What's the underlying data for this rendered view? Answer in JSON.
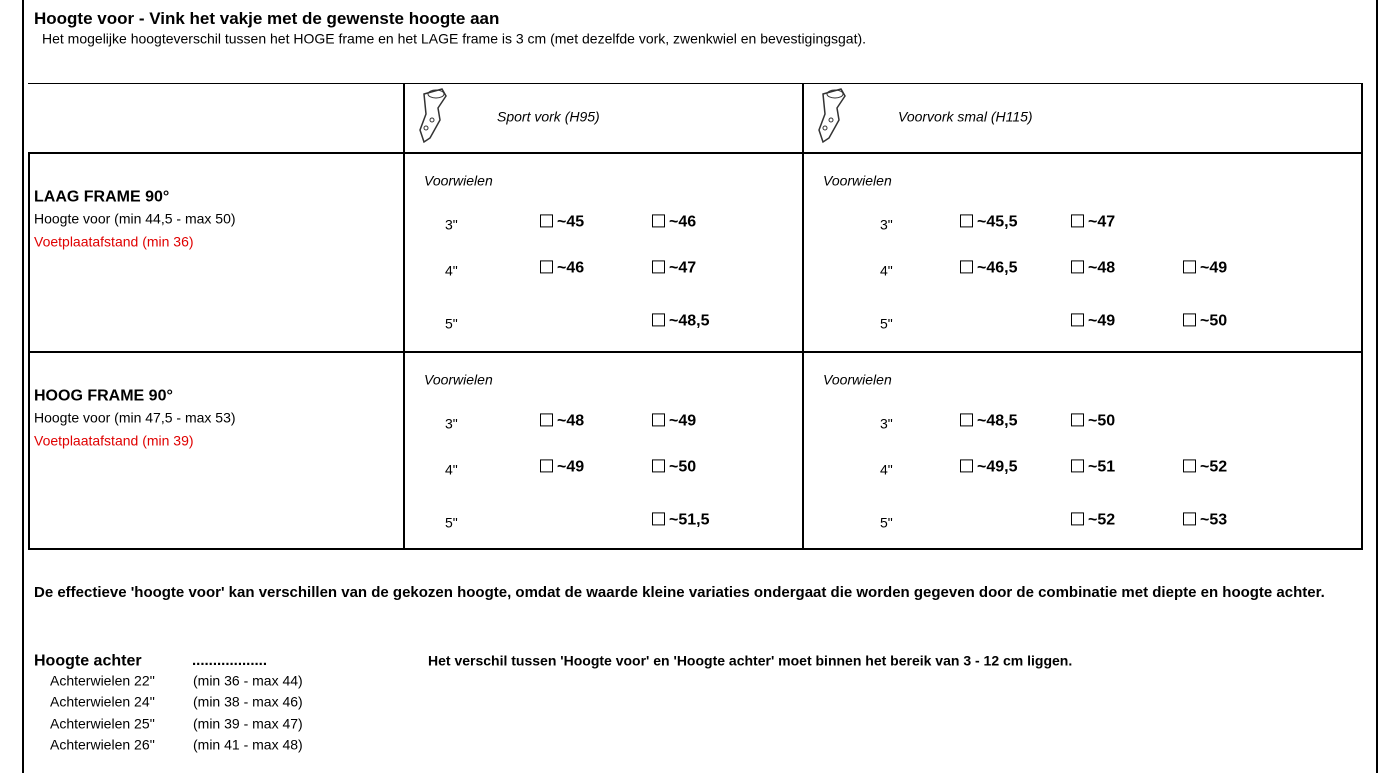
{
  "header": {
    "title": "Hoogte voor - Vink het vakje met de gewenste hoogte aan",
    "subtitle": "Het mogelijke hoogteverschil tussen het HOGE frame en het LAGE frame is 3 cm (met dezelfde vork, zwenkwiel en bevestigingsgat)."
  },
  "table": {
    "columns": [
      "Sport vork (H95)",
      "Voorvork smal (H115)"
    ],
    "rows": [
      {
        "title": "LAAG FRAME 90°",
        "height": "Hoogte voor (min 44,5 - max 50)",
        "footplate": "Voetplaatafstand (min 36)",
        "cells": [
          {
            "heading": "Voorwielen",
            "options": [
              {
                "size": "3\"",
                "choices": [
                  "~45",
                  "~46"
                ]
              },
              {
                "size": "4\"",
                "choices": [
                  "~46",
                  "~47"
                ]
              },
              {
                "size": "5\"",
                "choices": [
                  null,
                  "~48,5"
                ]
              }
            ]
          },
          {
            "heading": "Voorwielen",
            "options": [
              {
                "size": "3\"",
                "choices": [
                  "~45,5",
                  "~47",
                  null
                ]
              },
              {
                "size": "4\"",
                "choices": [
                  "~46,5",
                  "~48",
                  "~49"
                ]
              },
              {
                "size": "5\"",
                "choices": [
                  null,
                  "~49",
                  "~50"
                ]
              }
            ]
          }
        ]
      },
      {
        "title": "HOOG FRAME 90°",
        "height": "Hoogte voor (min 47,5 - max 53)",
        "footplate": "Voetplaatafstand (min 39)",
        "cells": [
          {
            "heading": "Voorwielen",
            "options": [
              {
                "size": "3\"",
                "choices": [
                  "~48",
                  "~49"
                ]
              },
              {
                "size": "4\"",
                "choices": [
                  "~49",
                  "~50"
                ]
              },
              {
                "size": "5\"",
                "choices": [
                  null,
                  "~51,5"
                ]
              }
            ]
          },
          {
            "heading": "Voorwielen",
            "options": [
              {
                "size": "3\"",
                "choices": [
                  "~48,5",
                  "~50",
                  null
                ]
              },
              {
                "size": "4\"",
                "choices": [
                  "~49,5",
                  "~51",
                  "~52"
                ]
              },
              {
                "size": "5\"",
                "choices": [
                  null,
                  "~52",
                  "~53"
                ]
              }
            ]
          }
        ]
      }
    ]
  },
  "note": "De effectieve 'hoogte voor' kan verschillen van de gekozen hoogte, omdat de waarde kleine variaties ondergaat die worden gegeven door de combinatie met diepte en hoogte achter.",
  "rear": {
    "title": "Hoogte achter",
    "blank": "..................",
    "rule": "Het verschil tussen 'Hoogte voor' en 'Hoogte achter' moet binnen het bereik van 3 - 12 cm liggen.",
    "wheels": [
      {
        "label": "Achterwielen 22''",
        "range": "(min 36 - max 44)"
      },
      {
        "label": "Achterwielen 24''",
        "range": "(min 38 - max 46)"
      },
      {
        "label": "Achterwielen 25''",
        "range": "(min 39 - max 47)"
      },
      {
        "label": "Achterwielen 26''",
        "range": "(min 41 - max 48)"
      }
    ]
  }
}
